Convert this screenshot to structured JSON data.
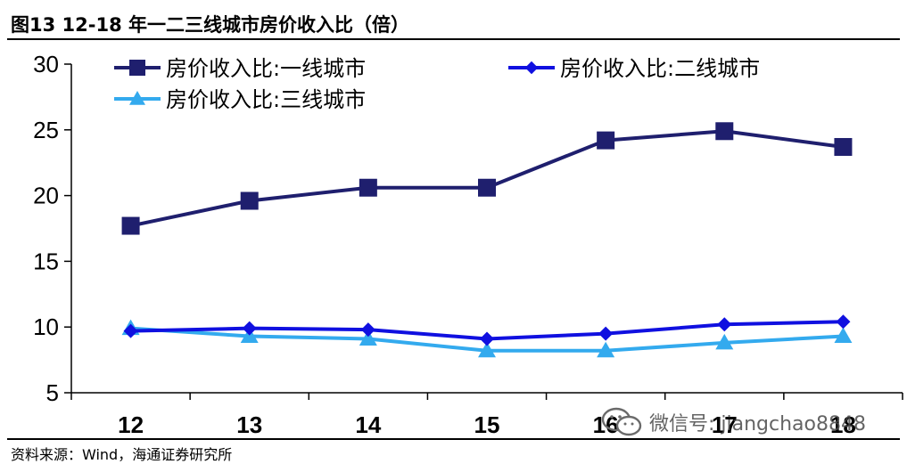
{
  "header": {
    "title": "图13 12-18 年一二三线城市房价收入比（倍）"
  },
  "footer": {
    "source": "资料来源：Wind，海通证券研究所"
  },
  "watermark": {
    "text": "微信号: jiangchao8848",
    "icon": "wechat-icon"
  },
  "chart_data": {
    "type": "line",
    "title": "图13 12-18 年一二三线城市房价收入比（倍）",
    "xlabel": "",
    "ylabel": "",
    "categories": [
      "12",
      "13",
      "14",
      "15",
      "16",
      "17",
      "18"
    ],
    "ylim": [
      5,
      30
    ],
    "yticks": [
      "5",
      "10",
      "15",
      "20",
      "25",
      "30"
    ],
    "grid": false,
    "legend_position": "top",
    "series": [
      {
        "name": "房价收入比:一线城市",
        "color": "#1f1f6e",
        "marker": "square",
        "values": [
          17.7,
          19.6,
          20.6,
          20.6,
          24.2,
          24.9,
          23.7
        ]
      },
      {
        "name": "房价收入比:二线城市",
        "color": "#1010e0",
        "marker": "diamond",
        "values": [
          9.7,
          9.9,
          9.8,
          9.1,
          9.5,
          10.2,
          10.4
        ]
      },
      {
        "name": "房价收入比:三线城市",
        "color": "#33aaee",
        "marker": "triangle",
        "values": [
          9.9,
          9.3,
          9.1,
          8.2,
          8.2,
          8.8,
          9.3
        ]
      }
    ]
  }
}
